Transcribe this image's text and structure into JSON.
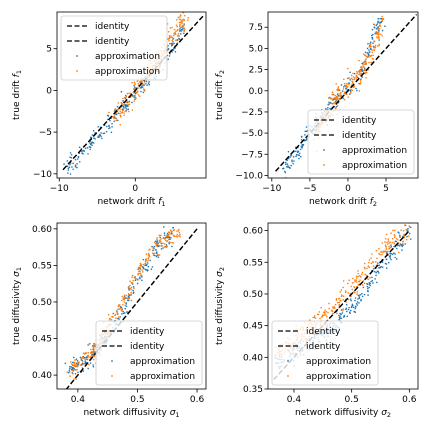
{
  "colors": {
    "blue": "#1f77b4",
    "orange": "#ff7f0e",
    "identity": "#000000"
  },
  "chart_data": [
    {
      "type": "scatter",
      "xlabel_main": "network drift ",
      "xlabel_sub": "f",
      "xlabel_index": "1",
      "ylabel_main": "true drift ",
      "ylabel_sub": "f",
      "ylabel_index": "1",
      "xlim": [
        -10.3,
        9.3
      ],
      "ylim": [
        -10.5,
        9.4
      ],
      "xticks": [
        -10,
        0
      ],
      "xtick_labels": [
        "−10",
        "0"
      ],
      "yticks": [
        -10,
        -5,
        0,
        5
      ],
      "ytick_labels": [
        "−10",
        "−5",
        "0",
        "5"
      ],
      "legend": {
        "placement": "upper-left",
        "entries": [
          "identity",
          "identity",
          "approximation",
          "approximation"
        ]
      },
      "identity_line": [
        -9.5,
        9.0
      ],
      "series": [
        {
          "name": "approximation",
          "color": "#1f77b4",
          "trend": [
            [
              -9.2,
              -9.4
            ],
            [
              -4.5,
              -5.0
            ],
            [
              0.0,
              -0.4
            ],
            [
              4.0,
              4.0
            ],
            [
              6.5,
              7.5
            ]
          ],
          "spread": 0.55,
          "n": 260
        },
        {
          "name": "approximation",
          "color": "#ff7f0e",
          "trend": [
            [
              -3.0,
              -3.5
            ],
            [
              0.0,
              0.0
            ],
            [
              3.0,
              3.5
            ],
            [
              5.0,
              7.0
            ],
            [
              6.5,
              8.5
            ]
          ],
          "spread": 0.75,
          "n": 260
        }
      ]
    },
    {
      "type": "scatter",
      "xlabel_main": "network drift ",
      "xlabel_sub": "f",
      "xlabel_index": "2",
      "ylabel_main": "true drift ",
      "ylabel_sub": "f",
      "ylabel_index": "2",
      "xlim": [
        -10.5,
        9.2
      ],
      "ylim": [
        -10.3,
        9.3
      ],
      "xticks": [
        -10,
        -5,
        0,
        5
      ],
      "xtick_labels": [
        "−10",
        "−5",
        "0",
        "5"
      ],
      "yticks": [
        -10.0,
        -7.5,
        -5.0,
        -2.5,
        0.0,
        2.5,
        5.0,
        7.5
      ],
      "ytick_labels": [
        "−10.0",
        "−7.5",
        "−5.0",
        "−2.5",
        "0.0",
        "2.5",
        "5.0",
        "7.5"
      ],
      "legend": {
        "placement": "lower-right",
        "entries": [
          "identity",
          "identity",
          "approximation",
          "approximation"
        ]
      },
      "identity_line": [
        -9.5,
        9.0
      ],
      "series": [
        {
          "name": "approximation",
          "color": "#1f77b4",
          "trend": [
            [
              -8.5,
              -9.5
            ],
            [
              -5.0,
              -5.0
            ],
            [
              -2.0,
              -1.5
            ],
            [
              0.0,
              0.5
            ],
            [
              2.0,
              2.5
            ],
            [
              3.5,
              7.0
            ],
            [
              4.5,
              8.3
            ]
          ],
          "spread": 0.6,
          "n": 260
        },
        {
          "name": "approximation",
          "color": "#ff7f0e",
          "trend": [
            [
              -4.0,
              -4.5
            ],
            [
              -2.0,
              -1.5
            ],
            [
              0.0,
              0.3
            ],
            [
              2.0,
              2.5
            ],
            [
              3.5,
              5.5
            ],
            [
              4.5,
              8.0
            ]
          ],
          "spread": 0.7,
          "n": 260
        }
      ]
    },
    {
      "type": "scatter",
      "xlabel_main": "network diffusivity ",
      "xlabel_sub": "σ",
      "xlabel_index": "1",
      "ylabel_main": "true diffusivity ",
      "ylabel_sub": "σ",
      "ylabel_index": "1",
      "xlim": [
        0.365,
        0.615
      ],
      "ylim": [
        0.381,
        0.608
      ],
      "xticks": [
        0.4,
        0.5,
        0.6
      ],
      "xtick_labels": [
        "0.4",
        "0.5",
        "0.6"
      ],
      "yticks": [
        0.4,
        0.45,
        0.5,
        0.55,
        0.6
      ],
      "ytick_labels": [
        "0.40",
        "0.45",
        "0.50",
        "0.55",
        "0.60"
      ],
      "legend": {
        "placement": "lower-right",
        "entries": [
          "identity",
          "identity",
          "approximation",
          "approximation"
        ]
      },
      "identity_line": [
        0.38,
        0.6
      ],
      "series": [
        {
          "name": "approximation",
          "color": "#1f77b4",
          "trend": [
            [
              0.385,
              0.405
            ],
            [
              0.43,
              0.43
            ],
            [
              0.47,
              0.48
            ],
            [
              0.5,
              0.53
            ],
            [
              0.53,
              0.57
            ],
            [
              0.56,
              0.595
            ]
          ],
          "spread": 0.007,
          "n": 300
        },
        {
          "name": "approximation",
          "color": "#ff7f0e",
          "trend": [
            [
              0.385,
              0.405
            ],
            [
              0.43,
              0.435
            ],
            [
              0.47,
              0.49
            ],
            [
              0.5,
              0.54
            ],
            [
              0.53,
              0.575
            ],
            [
              0.57,
              0.6
            ]
          ],
          "spread": 0.007,
          "n": 300
        }
      ]
    },
    {
      "type": "scatter",
      "xlabel_main": "network diffusivity ",
      "xlabel_sub": "σ",
      "xlabel_index": "2",
      "ylabel_main": "true diffusivity ",
      "ylabel_sub": "σ",
      "ylabel_index": "2",
      "xlim": [
        0.355,
        0.615
      ],
      "ylim": [
        0.35,
        0.612
      ],
      "xticks": [
        0.4,
        0.5,
        0.6
      ],
      "xtick_labels": [
        "0.4",
        "0.5",
        "0.6"
      ],
      "yticks": [
        0.35,
        0.4,
        0.45,
        0.5,
        0.55,
        0.6
      ],
      "ytick_labels": [
        "0.35",
        "0.40",
        "0.45",
        "0.50",
        "0.55",
        "0.60"
      ],
      "legend": {
        "placement": "lower-left",
        "entries": [
          "identity",
          "identity",
          "approximation",
          "approximation"
        ]
      },
      "identity_line": [
        0.365,
        0.6
      ],
      "series": [
        {
          "name": "approximation",
          "color": "#1f77b4",
          "trend": [
            [
              0.37,
              0.39
            ],
            [
              0.42,
              0.42
            ],
            [
              0.47,
              0.45
            ],
            [
              0.52,
              0.5
            ],
            [
              0.56,
              0.555
            ],
            [
              0.6,
              0.6
            ]
          ],
          "spread": 0.008,
          "n": 300
        },
        {
          "name": "approximation",
          "color": "#ff7f0e",
          "trend": [
            [
              0.37,
              0.405
            ],
            [
              0.42,
              0.44
            ],
            [
              0.47,
              0.48
            ],
            [
              0.52,
              0.53
            ],
            [
              0.56,
              0.575
            ],
            [
              0.6,
              0.6
            ]
          ],
          "spread": 0.009,
          "n": 300
        }
      ]
    }
  ]
}
